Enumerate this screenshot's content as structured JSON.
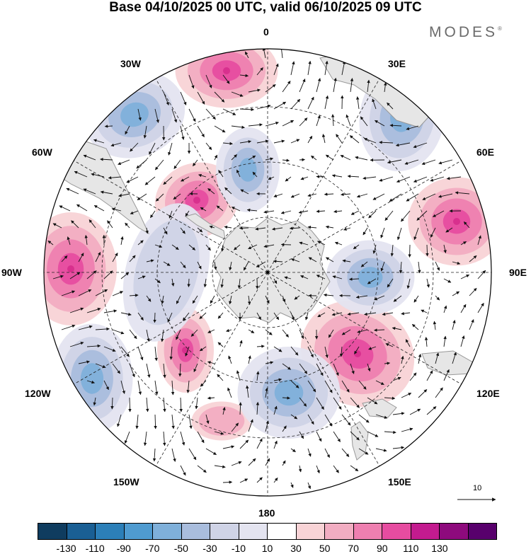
{
  "title": "Base 04/10/2025 00 UTC, valid 06/10/2025 09 UTC",
  "brand": "MODES",
  "brand_mark": "®",
  "lon_labels": [
    "0",
    "30E",
    "60E",
    "90E",
    "120E",
    "150E",
    "180",
    "150W",
    "120W",
    "90W",
    "60W",
    "30W"
  ],
  "reference_vector": {
    "label": "10"
  },
  "colorbar": {
    "colors": [
      "#0f3c5f",
      "#1a5f94",
      "#2c7fb8",
      "#4f9bd0",
      "#7fb0da",
      "#a9bddd",
      "#cfd3e6",
      "#e4e4f0",
      "#ffffff",
      "#f8d3d6",
      "#f2adc2",
      "#ee7fb0",
      "#e64ca0",
      "#c31b8f",
      "#8e0a7d",
      "#58006c"
    ],
    "labels": [
      "-130",
      "-110",
      "-90",
      "-70",
      "-50",
      "-30",
      "-10",
      "10",
      "30",
      "50",
      "70",
      "90",
      "110",
      "130"
    ]
  },
  "map_colors": {
    "land": "#e6e6e6",
    "coast": "#999999",
    "pink_light": "#f8d3d6",
    "pink_mid": "#f2adc2",
    "pink_strong": "#ee7fb0",
    "pink_core": "#e64ca0",
    "blue_light": "#e4e4f0",
    "blue_mid": "#cfd3e6",
    "blue_strong": "#a9bddd",
    "blue_core": "#7fb0da"
  }
}
